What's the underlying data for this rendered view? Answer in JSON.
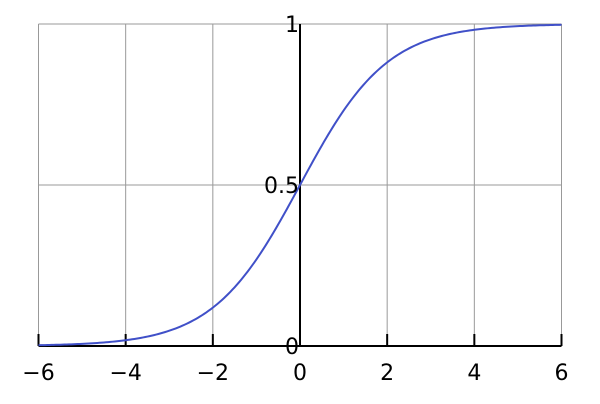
{
  "chart_data": {
    "type": "line",
    "title": "",
    "xlabel": "",
    "ylabel": "",
    "xlim": [
      -6,
      6
    ],
    "ylim": [
      0,
      1
    ],
    "grid": true,
    "function": "logistic 1/(1+e^-x)",
    "x_ticks": [
      -6,
      -4,
      -2,
      0,
      2,
      4,
      6
    ],
    "x_tick_labels": [
      "−6",
      "−4",
      "−2",
      "0",
      "2",
      "4",
      "6"
    ],
    "y_ticks": [
      0,
      0.5,
      1
    ],
    "y_tick_labels": [
      "0",
      "0.5",
      "1"
    ],
    "series": [
      {
        "color": "#4050c8",
        "x": [
          -6,
          -5,
          -4,
          -3,
          -2,
          -1,
          0,
          1,
          2,
          3,
          4,
          5,
          6
        ],
        "y": [
          0.0025,
          0.0067,
          0.018,
          0.047,
          0.119,
          0.269,
          0.5,
          0.731,
          0.881,
          0.953,
          0.982,
          0.9933,
          0.9975
        ]
      }
    ]
  }
}
